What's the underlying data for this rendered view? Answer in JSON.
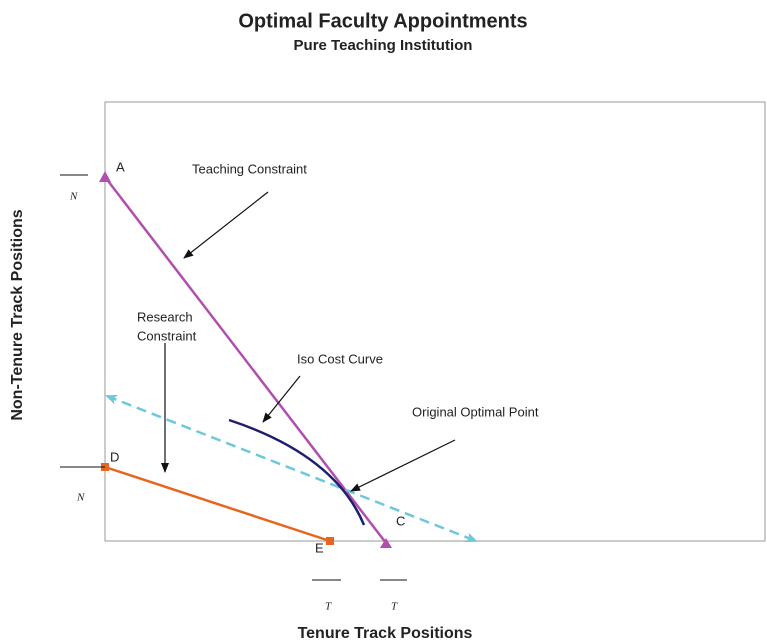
{
  "header": {
    "title": "Optimal Faculty Appointments",
    "subtitle": "Pure Teaching Institution"
  },
  "axes": {
    "x_label": "Tenure Track Positions",
    "y_label": "Non-Tenure Track Positions",
    "y_symbols": [
      "N",
      "N"
    ],
    "x_symbols": [
      "T",
      "T"
    ]
  },
  "points": {
    "a": "A",
    "d": "D",
    "e": "E",
    "c": "C"
  },
  "annotations": {
    "teaching": "Teaching Constraint",
    "research": [
      "Research",
      "Constraint"
    ],
    "iso": "Iso Cost Curve",
    "optimal": "Original Optimal Point"
  }
}
